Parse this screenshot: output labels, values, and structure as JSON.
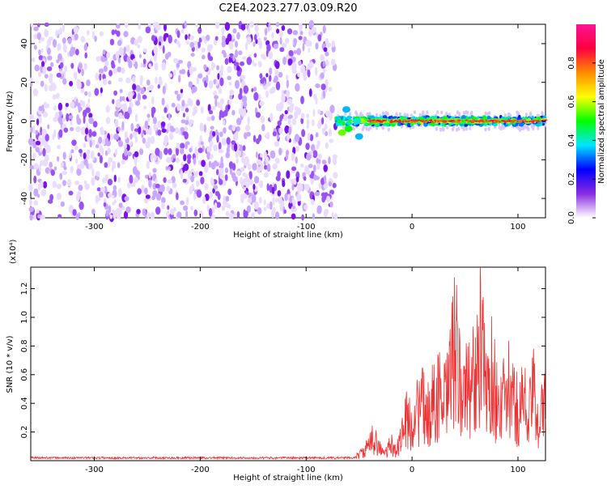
{
  "title": "C2E4.2023.277.03.09.R20",
  "chart_data": [
    {
      "type": "heatmap",
      "xlabel": "Height of straight line (km)",
      "ylabel": "Frequency (Hz)",
      "xlim": [
        -360,
        126
      ],
      "ylim": [
        -50,
        50
      ],
      "xticks": [
        -300,
        -200,
        -100,
        0,
        100
      ],
      "yticks": [
        -40,
        -20,
        0,
        20,
        40
      ],
      "colorbar": {
        "label": "Normalized spectral amplitude",
        "range": [
          0,
          1
        ],
        "ticks": [
          "0.0",
          "0.2",
          "0.4",
          "0.6",
          "0.8"
        ],
        "colors": [
          "#ffffff",
          "#8a2be2",
          "#0000ff",
          "#00e5ff",
          "#00ff00",
          "#ffff00",
          "#ff8c00",
          "#ff0040",
          "#ff1493"
        ]
      },
      "noise_region": {
        "x": [
          -360,
          -72
        ],
        "y": [
          -50,
          50
        ],
        "amplitude": 0.2
      },
      "signal_band": {
        "x": [
          -72,
          126
        ],
        "frequency_hz": 0,
        "amplitude_max": 0.9
      }
    },
    {
      "type": "line",
      "xlabel": "Height of straight line (km)",
      "ylabel": "SNR (10 * v/v)",
      "y_multiplier": "(x10⁴)",
      "xlim": [
        -360,
        126
      ],
      "ylim": [
        0,
        1.35
      ],
      "xticks": [
        -300,
        -200,
        -100,
        0,
        100
      ],
      "yticks": [
        "0.2",
        "0.4",
        "0.6",
        "0.8",
        "1.0",
        "1.2"
      ],
      "series": [
        {
          "color": "#ee3030",
          "x": [
            -360,
            -300,
            -250,
            -200,
            -150,
            -100,
            -55,
            -45,
            -40,
            -35,
            -30,
            -25,
            -20,
            -15,
            -10,
            -5,
            0,
            5,
            10,
            15,
            20,
            25,
            30,
            35,
            40,
            45,
            50,
            55,
            60,
            65,
            70,
            75,
            80,
            85,
            90,
            95,
            100,
            105,
            110,
            115,
            120,
            126
          ],
          "y": [
            0.02,
            0.02,
            0.02,
            0.02,
            0.02,
            0.02,
            0.03,
            0.1,
            0.18,
            0.28,
            0.12,
            0.08,
            0.18,
            0.1,
            0.3,
            0.45,
            0.4,
            0.55,
            0.6,
            0.5,
            0.65,
            0.75,
            0.6,
            0.8,
            1.3,
            0.85,
            0.7,
            1.0,
            0.85,
            1.3,
            0.75,
            0.95,
            0.7,
            0.6,
            0.8,
            0.65,
            0.55,
            0.7,
            0.5,
            0.75,
            0.45,
            0.6
          ]
        }
      ]
    }
  ]
}
